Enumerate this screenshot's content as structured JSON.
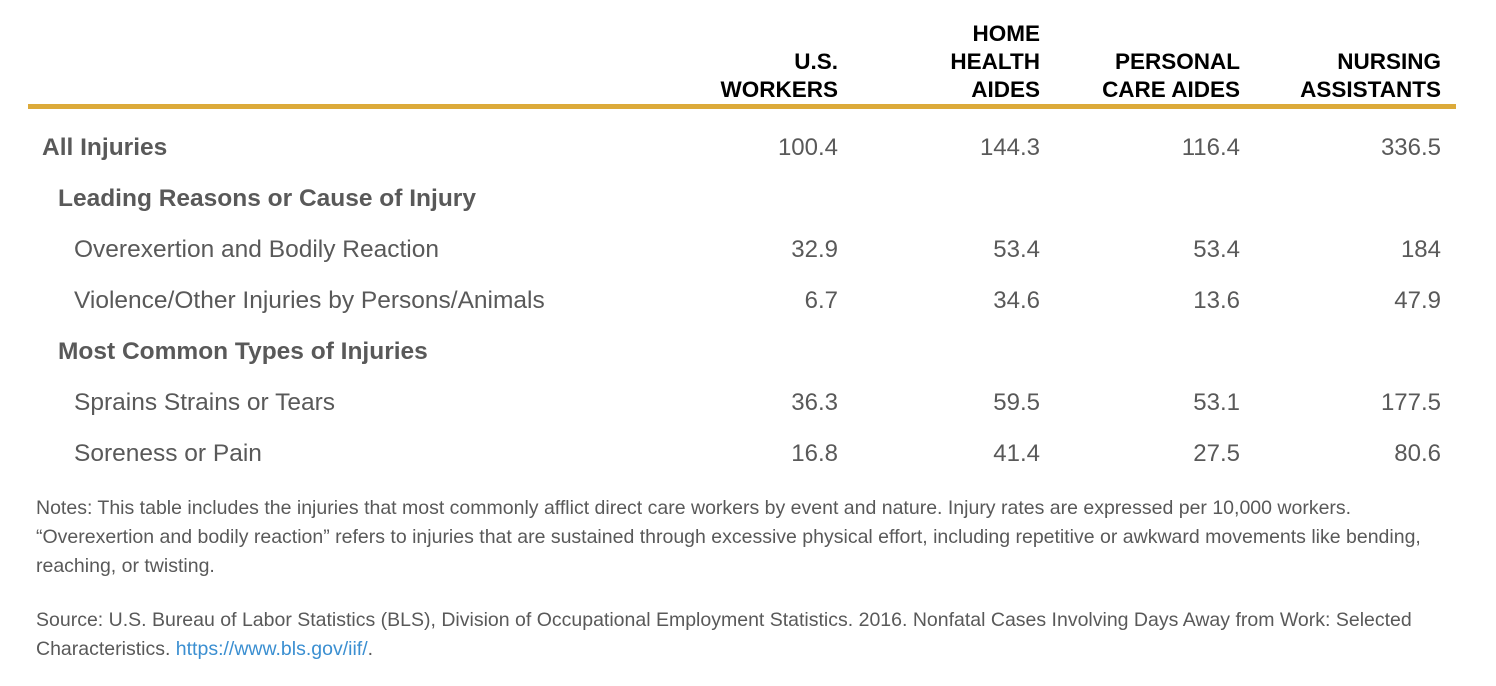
{
  "chart_data": {
    "type": "table",
    "columns": [
      {
        "key": "us_workers",
        "lines": [
          "U.S.",
          "WORKERS"
        ]
      },
      {
        "key": "home_health_aides",
        "lines": [
          "HOME",
          "HEALTH",
          "AIDES"
        ]
      },
      {
        "key": "personal_care_aides",
        "lines": [
          "PERSONAL",
          "CARE AIDES"
        ]
      },
      {
        "key": "nursing_assistants",
        "lines": [
          "NURSING",
          "ASSISTANTS"
        ]
      }
    ],
    "rows": [
      {
        "label": "All Injuries",
        "level": 0,
        "values": [
          "100.4",
          "144.3",
          "116.4",
          "336.5"
        ]
      },
      {
        "label": "Leading Reasons or Cause of Injury",
        "level": 1,
        "values": []
      },
      {
        "label": "Overexertion and Bodily Reaction",
        "level": 2,
        "values": [
          "32.9",
          "53.4",
          "53.4",
          "184"
        ]
      },
      {
        "label": "Violence/Other Injuries by Persons/Animals",
        "level": 2,
        "values": [
          "6.7",
          "34.6",
          "13.6",
          "47.9"
        ]
      },
      {
        "label": "Most Common Types of Injuries",
        "level": 1,
        "values": []
      },
      {
        "label": "Sprains Strains or Tears",
        "level": 2,
        "values": [
          "36.3",
          "59.5",
          "53.1",
          "177.5"
        ]
      },
      {
        "label": "Soreness or Pain",
        "level": 2,
        "values": [
          "16.8",
          "41.4",
          "27.5",
          "80.6"
        ]
      }
    ],
    "rule_color": "#dcaa3a"
  },
  "notes": "Notes: This table includes the injuries that most commonly afflict direct care workers by event and nature. Injury rates are expressed per 10,000 workers. “Overexertion and bodily reaction” refers to injuries that are sustained through excessive physical effort, including repetitive or awkward movements like bending, reaching, or twisting.",
  "source": {
    "text": "Source: U.S. Bureau of Labor Statistics (BLS), Division of Occupational Employment Statistics. 2016. Nonfatal Cases Involving Days Away from Work: Selected Characteristics. ",
    "link": "https://www.bls.gov/iif/",
    "trailing": "."
  }
}
